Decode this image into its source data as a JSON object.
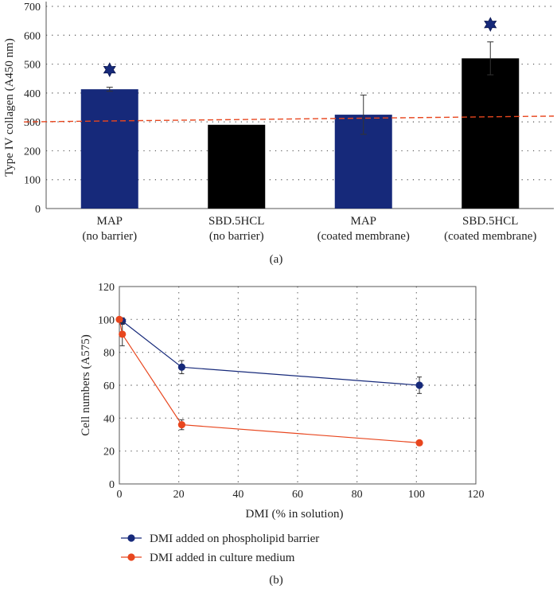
{
  "colors": {
    "navy": "#16297a",
    "black": "#000000",
    "orange": "#e8461e",
    "axis": "#555555",
    "grid": "#555555"
  },
  "chart_data": [
    {
      "type": "bar",
      "panel_label": "(a)",
      "ylabel": "Type IV collagen (A450 nm)",
      "ylim": [
        0,
        700
      ],
      "yticks": [
        0,
        100,
        200,
        300,
        400,
        500,
        600,
        700
      ],
      "categories": [
        [
          "MAP",
          "(no barrier)"
        ],
        [
          "SBD.5HCL",
          "(no barrier)"
        ],
        [
          "MAP",
          "(coated membrane)"
        ],
        [
          "SBD.5HCL",
          "(coated membrane)"
        ]
      ],
      "values": [
        413,
        290,
        325,
        520
      ],
      "errors": [
        7,
        0,
        68,
        57
      ],
      "bar_colors": [
        "navy",
        "black",
        "navy",
        "black"
      ],
      "significance": [
        true,
        false,
        false,
        true
      ],
      "trendline": {
        "style": "dashed",
        "color": "orange",
        "from": 300,
        "to": 320
      }
    },
    {
      "type": "line",
      "panel_label": "(b)",
      "xlabel": "DMI (% in solution)",
      "ylabel": "Cell numbers (A575)",
      "xlim": [
        0,
        120
      ],
      "ylim": [
        0,
        120
      ],
      "xticks": [
        0,
        20,
        40,
        60,
        80,
        100,
        120
      ],
      "yticks": [
        0,
        20,
        40,
        60,
        80,
        100,
        120
      ],
      "legend_position": "bottom",
      "series": [
        {
          "name": "DMI added on phospholipid barrier",
          "color": "navy",
          "points": [
            {
              "x": 1,
              "y": 99,
              "err": 2
            },
            {
              "x": 21,
              "y": 71,
              "err": 4
            },
            {
              "x": 101,
              "y": 60,
              "err": 5
            }
          ]
        },
        {
          "name": "DMI added in culture medium",
          "color": "orange",
          "points": [
            {
              "x": 0,
              "y": 100,
              "err": 0
            },
            {
              "x": 1,
              "y": 91,
              "err": 7
            },
            {
              "x": 21,
              "y": 36,
              "err": 3
            },
            {
              "x": 101,
              "y": 25,
              "err": 0
            }
          ]
        }
      ]
    }
  ]
}
